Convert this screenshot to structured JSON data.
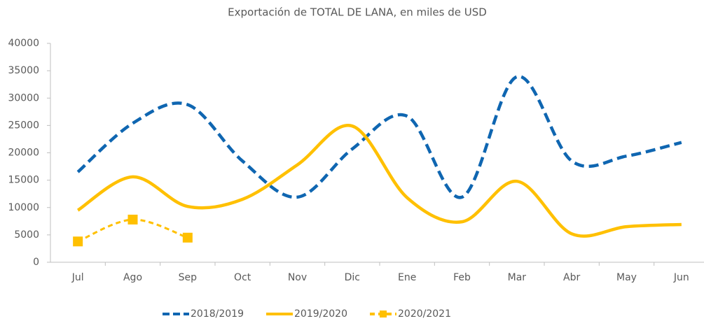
{
  "chart_data": {
    "type": "line",
    "title": "Exportación de TOTAL DE LANA,  en  miles de USD",
    "categories": [
      "Jul",
      "Ago",
      "Sep",
      "Oct",
      "Nov",
      "Dic",
      "Ene",
      "Feb",
      "Mar",
      "Abr",
      "May",
      "Jun"
    ],
    "series": [
      {
        "name": "2018/2019",
        "color": "#0f66b1",
        "dash": "dashed",
        "marker": "none",
        "values": [
          16500,
          25400,
          28800,
          18500,
          11900,
          20700,
          26700,
          11900,
          33900,
          18500,
          19400,
          21900
        ]
      },
      {
        "name": "2019/2020",
        "color": "#ffc000",
        "dash": "solid",
        "marker": "none",
        "values": [
          9500,
          15600,
          10200,
          11500,
          17800,
          24900,
          11800,
          7400,
          14800,
          5200,
          6500,
          6900
        ]
      },
      {
        "name": "2020/2021",
        "color": "#ffc000",
        "dash": "dashed",
        "marker": "square",
        "values": [
          3800,
          7800,
          4500,
          null,
          null,
          null,
          null,
          null,
          null,
          null,
          null,
          null
        ]
      }
    ],
    "ylim": [
      0,
      40000
    ],
    "yticks": [
      0,
      5000,
      10000,
      15000,
      20000,
      25000,
      30000,
      35000,
      40000
    ],
    "grid": false,
    "smooth": true,
    "legend": "bottom"
  }
}
